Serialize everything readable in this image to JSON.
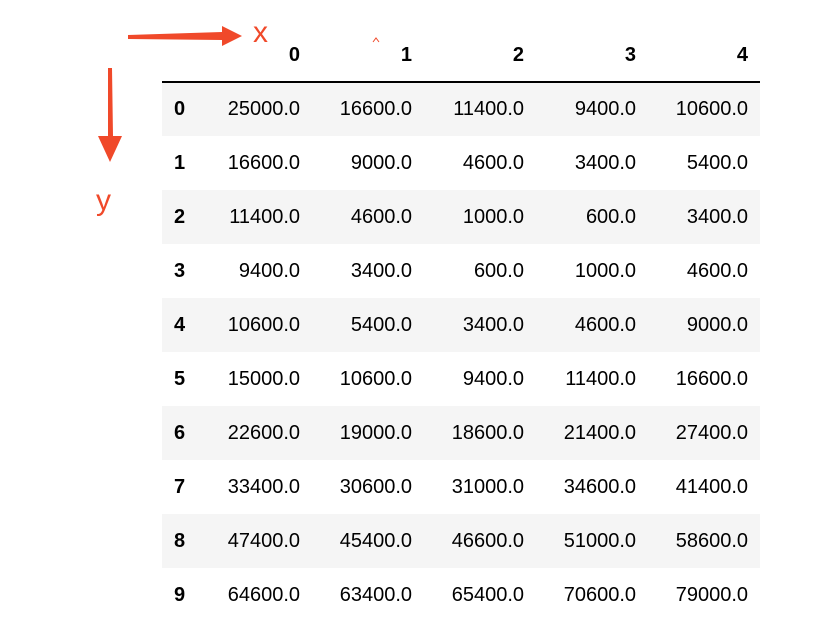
{
  "annotations": {
    "x_label": "x",
    "y_label": "y",
    "arrow_color": "#f0492a"
  },
  "table": {
    "columns": [
      "0",
      "1",
      "2",
      "3",
      "4"
    ],
    "rows": [
      {
        "index": "0",
        "cells": [
          "25000.0",
          "16600.0",
          "11400.0",
          "9400.0",
          "10600.0"
        ]
      },
      {
        "index": "1",
        "cells": [
          "16600.0",
          "9000.0",
          "4600.0",
          "3400.0",
          "5400.0"
        ]
      },
      {
        "index": "2",
        "cells": [
          "11400.0",
          "4600.0",
          "1000.0",
          "600.0",
          "3400.0"
        ]
      },
      {
        "index": "3",
        "cells": [
          "9400.0",
          "3400.0",
          "600.0",
          "1000.0",
          "4600.0"
        ]
      },
      {
        "index": "4",
        "cells": [
          "10600.0",
          "5400.0",
          "3400.0",
          "4600.0",
          "9000.0"
        ]
      },
      {
        "index": "5",
        "cells": [
          "15000.0",
          "10600.0",
          "9400.0",
          "11400.0",
          "16600.0"
        ]
      },
      {
        "index": "6",
        "cells": [
          "22600.0",
          "19000.0",
          "18600.0",
          "21400.0",
          "27400.0"
        ]
      },
      {
        "index": "7",
        "cells": [
          "33400.0",
          "30600.0",
          "31000.0",
          "34600.0",
          "41400.0"
        ]
      },
      {
        "index": "8",
        "cells": [
          "47400.0",
          "45400.0",
          "46600.0",
          "51000.0",
          "58600.0"
        ]
      },
      {
        "index": "9",
        "cells": [
          "64600.0",
          "63400.0",
          "65400.0",
          "70600.0",
          "79000.0"
        ]
      }
    ]
  }
}
